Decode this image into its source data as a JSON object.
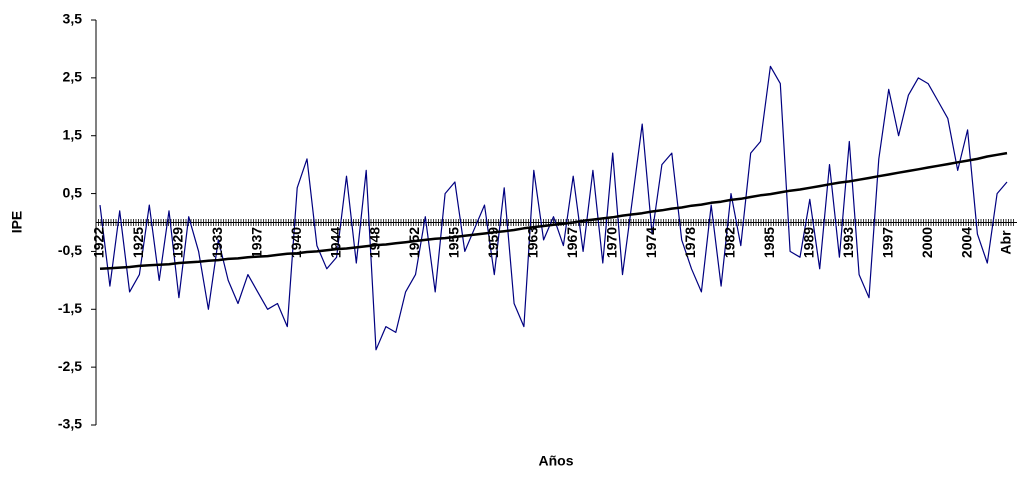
{
  "chart_data": {
    "type": "line",
    "x_label": "Años",
    "y_label": "IPE",
    "categories": [
      "1922",
      null,
      null,
      null,
      "1925",
      null,
      null,
      null,
      "1929",
      null,
      null,
      null,
      "1933",
      null,
      null,
      null,
      "1937",
      null,
      null,
      null,
      "1940",
      null,
      null,
      null,
      "1944",
      null,
      null,
      null,
      "1948",
      null,
      null,
      null,
      "1952",
      null,
      null,
      null,
      "1955",
      null,
      null,
      null,
      "1959",
      null,
      null,
      null,
      "1963",
      null,
      null,
      null,
      "1967",
      null,
      null,
      null,
      "1970",
      null,
      null,
      null,
      "1974",
      null,
      null,
      null,
      "1978",
      null,
      null,
      null,
      "1982",
      null,
      null,
      null,
      "1985",
      null,
      null,
      null,
      "1989",
      null,
      null,
      null,
      "1993",
      null,
      null,
      null,
      "1997",
      null,
      null,
      null,
      "2000",
      null,
      null,
      null,
      "2004",
      null,
      null,
      null,
      "Abr"
    ],
    "series": [
      {
        "color": "#000080",
        "values": [
          0.3,
          -1.1,
          0.2,
          -1.2,
          -0.9,
          0.3,
          -1.0,
          0.2,
          -1.3,
          0.1,
          -0.5,
          -1.5,
          -0.3,
          -1.0,
          -1.4,
          -0.9,
          -1.2,
          -1.5,
          -1.4,
          -1.8,
          0.6,
          1.1,
          -0.4,
          -0.8,
          -0.6,
          0.8,
          -0.7,
          0.9,
          -2.2,
          -1.8,
          -1.9,
          -1.2,
          -0.9,
          0.1,
          -1.2,
          0.5,
          0.7,
          -0.5,
          -0.1,
          0.3,
          -0.9,
          0.6,
          -1.4,
          -1.8,
          0.9,
          -0.3,
          0.1,
          -0.4,
          0.8,
          -0.5,
          0.9,
          -0.7,
          1.2,
          -0.9,
          0.4,
          1.7,
          -0.2,
          1.0,
          1.2,
          -0.3,
          -0.8,
          -1.2,
          0.3,
          -1.1,
          0.5,
          -0.4,
          1.2,
          1.4,
          2.7,
          2.4,
          -0.5,
          -0.6,
          0.4,
          -0.8,
          1.0,
          -0.6,
          1.4,
          -0.9,
          -1.3,
          1.1,
          2.3,
          1.5,
          2.2,
          2.5,
          2.4,
          2.1,
          1.8,
          0.9,
          1.6,
          -0.2,
          -0.7,
          0.5,
          0.7
        ]
      },
      {
        "color": "#000000",
        "values": [
          -0.8,
          -0.79,
          -0.78,
          -0.77,
          -0.75,
          -0.74,
          -0.73,
          -0.72,
          -0.7,
          -0.69,
          -0.68,
          -0.66,
          -0.65,
          -0.63,
          -0.62,
          -0.6,
          -0.59,
          -0.58,
          -0.56,
          -0.54,
          -0.53,
          -0.51,
          -0.5,
          -0.48,
          -0.46,
          -0.45,
          -0.43,
          -0.41,
          -0.39,
          -0.38,
          -0.36,
          -0.34,
          -0.32,
          -0.3,
          -0.28,
          -0.27,
          -0.25,
          -0.23,
          -0.21,
          -0.19,
          -0.17,
          -0.15,
          -0.13,
          -0.1,
          -0.08,
          -0.06,
          -0.04,
          -0.02,
          0.0,
          0.03,
          0.05,
          0.07,
          0.09,
          0.12,
          0.14,
          0.16,
          0.19,
          0.21,
          0.24,
          0.26,
          0.29,
          0.31,
          0.34,
          0.36,
          0.39,
          0.41,
          0.44,
          0.47,
          0.49,
          0.52,
          0.55,
          0.57,
          0.6,
          0.63,
          0.66,
          0.69,
          0.71,
          0.74,
          0.77,
          0.8,
          0.83,
          0.86,
          0.89,
          0.92,
          0.95,
          0.98,
          1.01,
          1.04,
          1.07,
          1.1,
          1.14,
          1.17,
          1.2
        ]
      }
    ],
    "ylim": [
      -3.5,
      3.5
    ],
    "yticks": [
      {
        "value": -3.5,
        "label": "-3,5"
      },
      {
        "value": -2.5,
        "label": "-2,5"
      },
      {
        "value": -1.5,
        "label": "-1,5"
      },
      {
        "value": -0.5,
        "label": "-0,5"
      },
      {
        "value": 0.5,
        "label": "0,5"
      },
      {
        "value": 1.5,
        "label": "1,5"
      },
      {
        "value": 2.5,
        "label": "2,5"
      },
      {
        "value": 3.5,
        "label": "3,5"
      }
    ]
  }
}
